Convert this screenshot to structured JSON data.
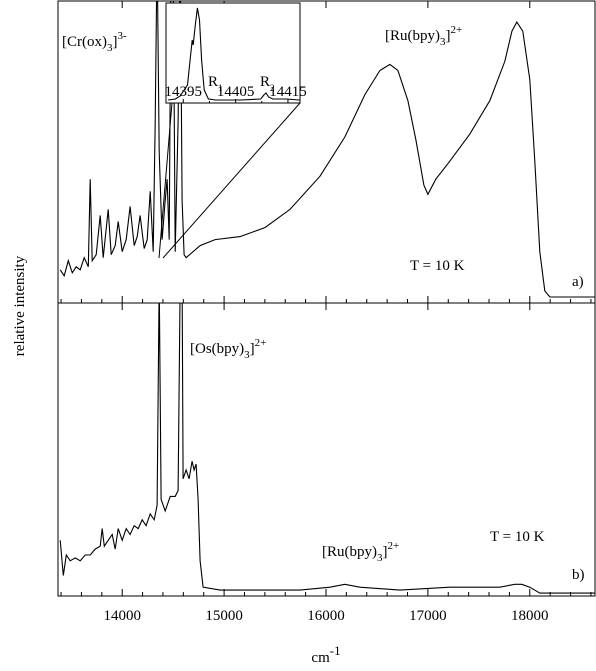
{
  "chart_data": [
    {
      "type": "line",
      "ylabel": "relative intensity",
      "color": "#000000",
      "xlim": [
        13370,
        18640
      ],
      "ylim": [
        0,
        1
      ],
      "xticks": [
        14000,
        15000,
        16000,
        17000,
        18000
      ],
      "xminorticks": [
        13400,
        13600,
        13800,
        14200,
        14400,
        14600,
        14800,
        15200,
        15400,
        15600,
        15800,
        16200,
        16400,
        16600,
        16800,
        17200,
        17400,
        17600,
        17800,
        18200,
        18400,
        18600
      ],
      "x": [
        13392,
        13431,
        13471,
        13510,
        13549,
        13588,
        13627,
        13667,
        13686,
        13706,
        13745,
        13784,
        13814,
        13863,
        13892,
        13931,
        13961,
        14000,
        14039,
        14078,
        14118,
        14147,
        14176,
        14216,
        14245,
        14275,
        14304,
        14324,
        14343,
        14363,
        14392,
        14422,
        14441,
        14461,
        14480,
        14500,
        14520,
        14549,
        14569,
        14588,
        14608,
        14627,
        14765,
        14912,
        15157,
        15402,
        15647,
        15941,
        16186,
        16382,
        16529,
        16627,
        16706,
        16804,
        16882,
        16961,
        17000,
        17078,
        17216,
        17412,
        17608,
        17755,
        17824,
        17873,
        17931,
        18000,
        18049,
        18098,
        18147,
        18196,
        18637
      ],
      "values": [
        0.11,
        0.09,
        0.14,
        0.1,
        0.12,
        0.11,
        0.15,
        0.12,
        0.41,
        0.14,
        0.16,
        0.29,
        0.15,
        0.31,
        0.16,
        0.19,
        0.27,
        0.17,
        0.21,
        0.32,
        0.19,
        0.22,
        0.29,
        0.18,
        0.21,
        0.37,
        0.17,
        0.6,
        1.17,
        0.5,
        0.21,
        0.34,
        0.41,
        0.21,
        1.17,
        1.17,
        0.17,
        0.6,
        1.17,
        0.34,
        0.16,
        0.15,
        0.19,
        0.21,
        0.22,
        0.25,
        0.31,
        0.42,
        0.55,
        0.69,
        0.77,
        0.79,
        0.77,
        0.67,
        0.54,
        0.39,
        0.36,
        0.41,
        0.47,
        0.56,
        0.67,
        0.8,
        0.9,
        0.93,
        0.9,
        0.74,
        0.47,
        0.17,
        0.04,
        0.02,
        0.02
      ],
      "annotations": [
        {
          "base": "[Cr(ox)",
          "sub": "3",
          "close": "]",
          "sup": "3-"
        },
        {
          "base": "[Ru(bpy)",
          "sub": "3",
          "close": "]",
          "sup": "2+"
        },
        {
          "base": "T = 10 K"
        },
        {
          "base": "a)"
        }
      ]
    },
    {
      "type": "line",
      "xlabel": {
        "base": "cm",
        "sup": "-1"
      },
      "color": "#000000",
      "xlim": [
        13370,
        18640
      ],
      "ylim": [
        0,
        1
      ],
      "xticks": [
        14000,
        15000,
        16000,
        17000,
        18000
      ],
      "xminorticks": [
        13400,
        13600,
        13800,
        14200,
        14400,
        14600,
        14800,
        15200,
        15400,
        15600,
        15800,
        16200,
        16400,
        16600,
        16800,
        17200,
        17400,
        17600,
        17800,
        18200,
        18400,
        18600
      ],
      "x": [
        13392,
        13422,
        13451,
        13490,
        13539,
        13588,
        13637,
        13686,
        13735,
        13784,
        13804,
        13824,
        13863,
        13902,
        13931,
        13961,
        14000,
        14039,
        14078,
        14118,
        14157,
        14196,
        14235,
        14275,
        14314,
        14343,
        14363,
        14382,
        14422,
        14471,
        14520,
        14549,
        14569,
        14588,
        14598,
        14627,
        14657,
        14686,
        14706,
        14725,
        14745,
        14765,
        14794,
        14961,
        15353,
        15745,
        16039,
        16186,
        16333,
        16725,
        17216,
        17706,
        17853,
        17922,
        18000,
        18098,
        18196,
        18637
      ],
      "values": [
        0.19,
        0.07,
        0.14,
        0.12,
        0.13,
        0.12,
        0.14,
        0.14,
        0.16,
        0.17,
        0.23,
        0.17,
        0.19,
        0.21,
        0.16,
        0.23,
        0.19,
        0.23,
        0.21,
        0.24,
        0.23,
        0.26,
        0.24,
        0.28,
        0.26,
        0.31,
        1.08,
        0.33,
        0.29,
        0.34,
        0.34,
        0.36,
        1.08,
        1.08,
        0.4,
        0.43,
        0.4,
        0.46,
        0.43,
        0.45,
        0.33,
        0.12,
        0.03,
        0.02,
        0.02,
        0.02,
        0.03,
        0.04,
        0.03,
        0.02,
        0.03,
        0.03,
        0.04,
        0.04,
        0.03,
        0.01,
        0.01,
        0.01
      ],
      "annotations": [
        {
          "base": "[Os(bpy)",
          "sub": "3",
          "close": "]",
          "sup": "2+"
        },
        {
          "base": "[Ru(bpy)",
          "sub": "3",
          "close": "]",
          "sup": "2+"
        },
        {
          "base": "T = 10 K"
        },
        {
          "base": "b)"
        }
      ]
    },
    {
      "type": "line",
      "color": "#000000",
      "xlim": [
        14391.7,
        14417.3
      ],
      "ylim": [
        0,
        1
      ],
      "xticks": [
        14395,
        14405,
        14415
      ],
      "xminorticks": [
        14400,
        14410
      ],
      "x": [
        14392.1,
        14393.5,
        14394.4,
        14395.8,
        14396.3,
        14396.7,
        14396.9,
        14397.3,
        14397.7,
        14398.1,
        14398.5,
        14399.0,
        14399.8,
        14401.2,
        14406.0,
        14409.8,
        14410.4,
        14410.8,
        14411.3,
        14412.1,
        14414.6,
        14417.2
      ],
      "values": [
        0.03,
        0.04,
        0.07,
        0.18,
        0.43,
        0.63,
        0.58,
        0.78,
        0.95,
        0.83,
        0.43,
        0.13,
        0.04,
        0.03,
        0.03,
        0.04,
        0.08,
        0.1,
        0.06,
        0.04,
        0.04,
        0.03
      ],
      "annotations": [
        {
          "base": "R",
          "sub": "1"
        },
        {
          "base": "R",
          "sub": "2"
        }
      ]
    }
  ]
}
